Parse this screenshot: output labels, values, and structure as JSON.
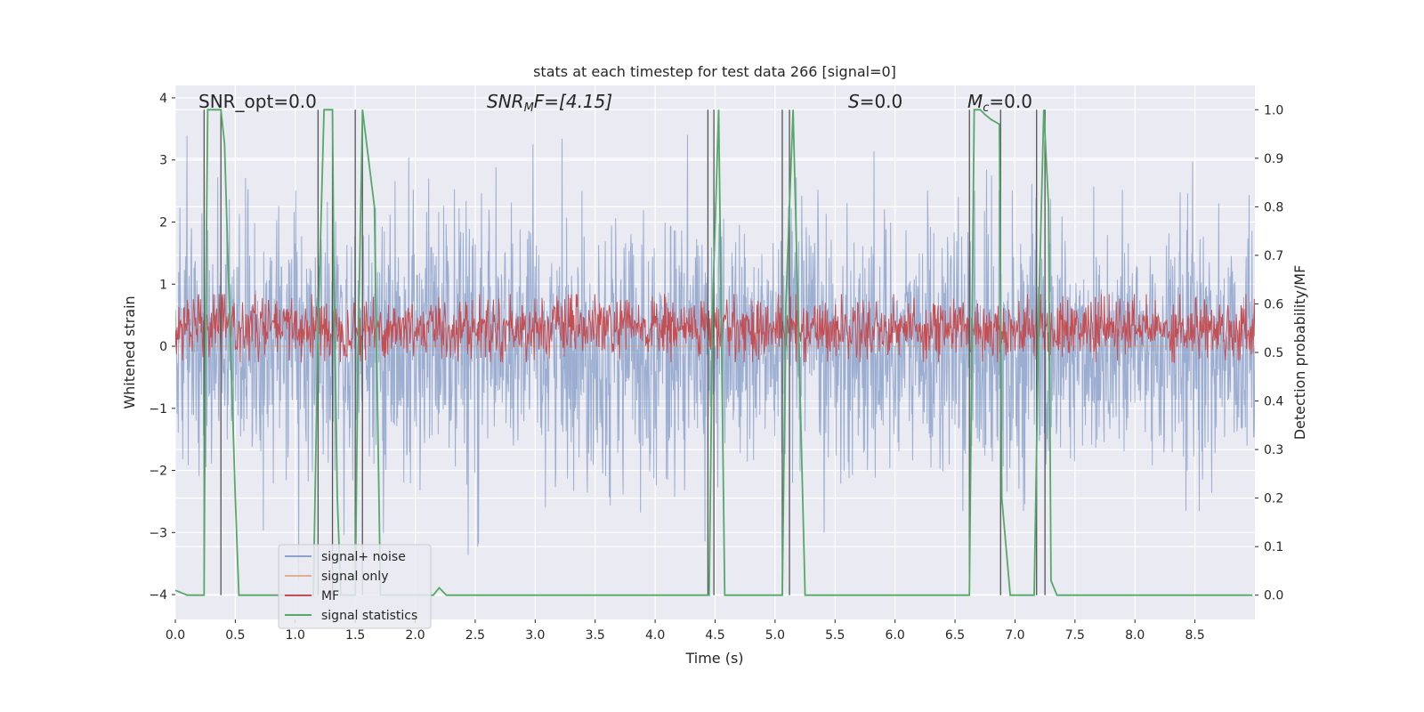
{
  "chart_data": {
    "type": "line",
    "title": "stats at each timestep for test data 266 [signal=0]",
    "xlabel": "Time (s)",
    "ylabel": "Whitened strain",
    "y2label": "Detection probability/MF",
    "xlim": [
      0.0,
      9.0
    ],
    "ylim": [
      -4.4,
      4.2
    ],
    "y2lim": [
      -0.05,
      1.05
    ],
    "xticks": [
      0.0,
      0.5,
      1.0,
      1.5,
      2.0,
      2.5,
      3.0,
      3.5,
      4.0,
      4.5,
      5.0,
      5.5,
      6.0,
      6.5,
      7.0,
      7.5,
      8.0,
      8.5
    ],
    "xtick_labels": [
      "0.0",
      "0.5",
      "1.0",
      "1.5",
      "2.0",
      "2.5",
      "3.0",
      "3.5",
      "4.0",
      "4.5",
      "5.0",
      "5.5",
      "6.0",
      "6.5",
      "7.0",
      "7.5",
      "8.0",
      "8.5"
    ],
    "yticks": [
      -4,
      -3,
      -2,
      -1,
      0,
      1,
      2,
      3,
      4
    ],
    "ytick_labels": [
      "−4",
      "−3",
      "−2",
      "−1",
      "0",
      "1",
      "2",
      "3",
      "4"
    ],
    "y2ticks": [
      0.0,
      0.1,
      0.2,
      0.3,
      0.4,
      0.5,
      0.6,
      0.7,
      0.8,
      0.9,
      1.0
    ],
    "y2tick_labels": [
      "0.0",
      "0.1",
      "0.2",
      "0.3",
      "0.4",
      "0.5",
      "0.6",
      "0.7",
      "0.8",
      "0.9",
      "1.0"
    ],
    "grid": true,
    "legend_position": "lower-left",
    "annotations": {
      "snr_opt": "SNR_opt=0.0",
      "snr_mf_main": "SNR",
      "snr_mf_sub": "M",
      "snr_mf_rest": "F=[4.15]",
      "s_main": "S",
      "s_rest": "=0.0",
      "mc_main": "M",
      "mc_sub": "c",
      "mc_rest": "=0.0"
    },
    "series": [
      {
        "name": "signal+ noise",
        "color": "#4c72b0",
        "style": "dense-noise",
        "description_values": {
          "mean": 0.0,
          "std": 1.0,
          "max_abs": 3.9
        }
      },
      {
        "name": "signal only",
        "color": "#dd8452",
        "style": "flat",
        "values": []
      },
      {
        "name": "MF",
        "color": "#c44e52",
        "style": "dense-noise",
        "description_values": {
          "min": 0.48,
          "max": 0.62
        }
      },
      {
        "name": "signal statistics",
        "color": "#55a868",
        "axis": "right",
        "x": [
          0.0,
          0.1,
          0.24,
          0.25,
          0.27,
          0.3,
          0.38,
          0.41,
          0.45,
          0.5,
          0.53,
          1.15,
          1.19,
          1.24,
          1.31,
          1.32,
          1.35,
          1.38,
          1.5,
          1.52,
          1.56,
          1.6,
          1.66,
          1.71,
          2.05,
          2.1,
          2.15,
          2.2,
          2.26,
          4.45,
          4.48,
          4.53,
          4.58,
          5.06,
          5.09,
          5.15,
          5.21,
          5.25,
          6.62,
          6.66,
          6.71,
          6.75,
          6.8,
          6.87,
          6.89,
          6.96,
          7.16,
          7.2,
          7.24,
          7.28,
          7.3,
          7.35,
          8.98
        ],
        "y": [
          0.01,
          0.0,
          0.0,
          0.5,
          1.0,
          1.0,
          1.0,
          0.93,
          0.6,
          0.2,
          0.0,
          0.0,
          0.55,
          1.0,
          1.0,
          0.7,
          0.2,
          0.0,
          0.0,
          0.45,
          1.0,
          0.92,
          0.8,
          0.0,
          0.0,
          0.0,
          0.0,
          0.015,
          0.0,
          0.0,
          0.6,
          1.0,
          0.0,
          0.0,
          0.6,
          1.0,
          0.4,
          0.0,
          0.0,
          1.0,
          1.0,
          0.99,
          0.98,
          0.97,
          0.2,
          0.0,
          0.0,
          0.6,
          1.0,
          0.8,
          0.03,
          0.0,
          0.0
        ]
      }
    ],
    "event_lines_x": [
      0.24,
      0.38,
      1.19,
      1.31,
      1.5,
      1.56,
      4.44,
      4.49,
      5.06,
      5.12,
      6.62,
      6.88,
      7.18,
      7.25
    ]
  }
}
